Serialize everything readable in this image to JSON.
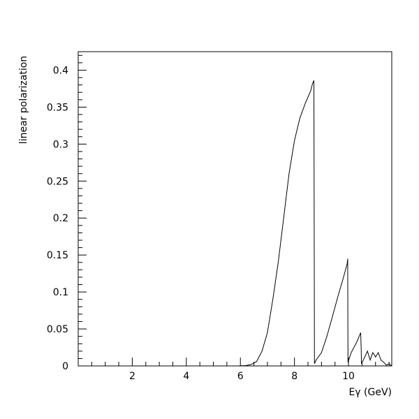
{
  "chart_data": {
    "type": "line",
    "title": "",
    "xlabel": "Eγ (GeV)",
    "ylabel": "linear polarization",
    "xlim": [
      0,
      11.6
    ],
    "ylim": [
      0,
      0.425
    ],
    "x_ticks": [
      {
        "value": 2,
        "label": "2"
      },
      {
        "value": 4,
        "label": "4"
      },
      {
        "value": 6,
        "label": "6"
      },
      {
        "value": 8,
        "label": "8"
      },
      {
        "value": 10,
        "label": "10"
      }
    ],
    "y_ticks": [
      {
        "value": 0,
        "label": "0"
      },
      {
        "value": 0.05,
        "label": "0.05"
      },
      {
        "value": 0.1,
        "label": "0.1"
      },
      {
        "value": 0.15,
        "label": "0.15"
      },
      {
        "value": 0.2,
        "label": "0.2"
      },
      {
        "value": 0.25,
        "label": "0.25"
      },
      {
        "value": 0.3,
        "label": "0.3"
      },
      {
        "value": 0.35,
        "label": "0.35"
      },
      {
        "value": 0.4,
        "label": "0.4"
      }
    ],
    "grid": false,
    "series": [
      {
        "x": [
          5.9,
          6.2,
          6.4,
          6.6,
          6.8,
          7.0,
          7.2,
          7.4,
          7.6,
          7.8,
          8.0,
          8.2,
          8.4,
          8.6,
          8.67,
          8.72,
          8.73,
          8.74,
          8.8,
          9.0,
          9.2,
          9.4,
          9.6,
          9.8,
          9.95,
          9.97,
          9.98,
          10.1,
          10.3,
          10.45,
          10.47,
          10.48,
          10.6,
          10.7,
          10.8,
          10.9,
          11.0,
          11.1,
          11.2,
          11.3,
          11.4,
          11.5,
          11.6
        ],
        "y": [
          0,
          0.0005,
          0.002,
          0.006,
          0.02,
          0.045,
          0.09,
          0.14,
          0.2,
          0.26,
          0.305,
          0.335,
          0.355,
          0.372,
          0.382,
          0.386,
          0.2,
          0.003,
          0.008,
          0.018,
          0.04,
          0.066,
          0.093,
          0.118,
          0.138,
          0.145,
          0.005,
          0.018,
          0.032,
          0.045,
          0.02,
          0.003,
          0.012,
          0.02,
          0.008,
          0.018,
          0.012,
          0.018,
          0.008,
          0.005,
          0.001,
          0.003,
          0.0
        ]
      }
    ]
  }
}
